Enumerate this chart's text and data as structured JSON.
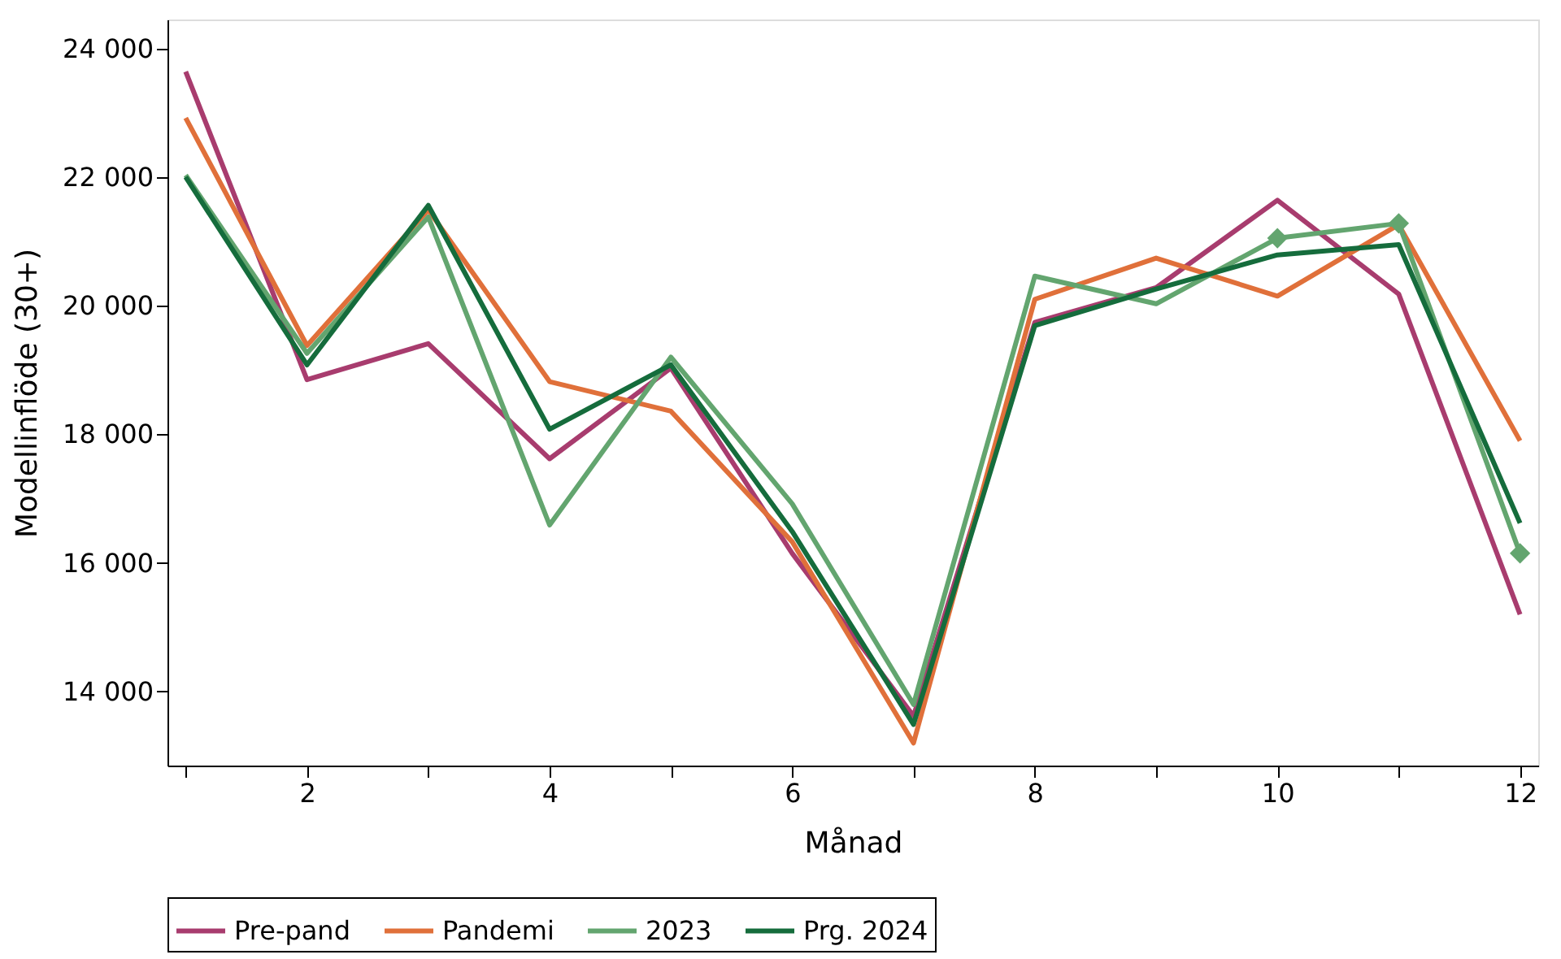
{
  "chart_data": {
    "type": "line",
    "xlabel": "Månad",
    "ylabel": "Modellinflöde (30+)",
    "x": [
      1,
      2,
      3,
      4,
      5,
      6,
      7,
      8,
      9,
      10,
      11,
      12
    ],
    "xlim": [
      0.85,
      12.15
    ],
    "xticks": [
      {
        "value": 1,
        "label": null
      },
      2,
      {
        "value": 3,
        "label": null
      },
      4,
      {
        "value": 5,
        "label": null
      },
      6,
      {
        "value": 7,
        "label": null
      },
      8,
      {
        "value": 9,
        "label": null
      },
      10,
      {
        "value": 11,
        "label": null
      },
      12
    ],
    "ylim": [
      12850,
      24450
    ],
    "yticks": [
      {
        "value": 14000,
        "label": "14 000"
      },
      {
        "value": 16000,
        "label": "16 000"
      },
      {
        "value": 18000,
        "label": "18 000"
      },
      {
        "value": 20000,
        "label": "20 000"
      },
      {
        "value": 22000,
        "label": "22 000"
      },
      {
        "value": 24000,
        "label": "24 000"
      }
    ],
    "grid": false,
    "legend": "bottom",
    "line_style": "solid",
    "marker": "none",
    "series": [
      {
        "name": "Pre-pand",
        "color": "#a83c6e",
        "values": [
          23640,
          18850,
          19410,
          17620,
          19030,
          16150,
          13620,
          19740,
          20280,
          21640,
          20180,
          15200
        ]
      },
      {
        "name": "Pandemi",
        "color": "#e0703a",
        "values": [
          22920,
          19380,
          21490,
          18820,
          18360,
          16330,
          13200,
          20100,
          20740,
          20150,
          21260,
          17900
        ]
      },
      {
        "name": "2023",
        "color": "#63a56f",
        "values": [
          22030,
          19260,
          21380,
          16590,
          19200,
          16920,
          13800,
          20460,
          20030,
          21050,
          21280,
          16150
        ]
      },
      {
        "name": "Prg. 2024",
        "color": "#156c3c",
        "values": [
          22000,
          19080,
          21560,
          18080,
          19080,
          16490,
          13490,
          19690,
          20260,
          20790,
          20950,
          16620
        ]
      },
      {
        "type": "scatter",
        "marker": "diamond",
        "color": "#63a56f",
        "x": [
          10,
          11,
          12
        ],
        "values": [
          21050,
          21280,
          16150
        ]
      }
    ]
  }
}
